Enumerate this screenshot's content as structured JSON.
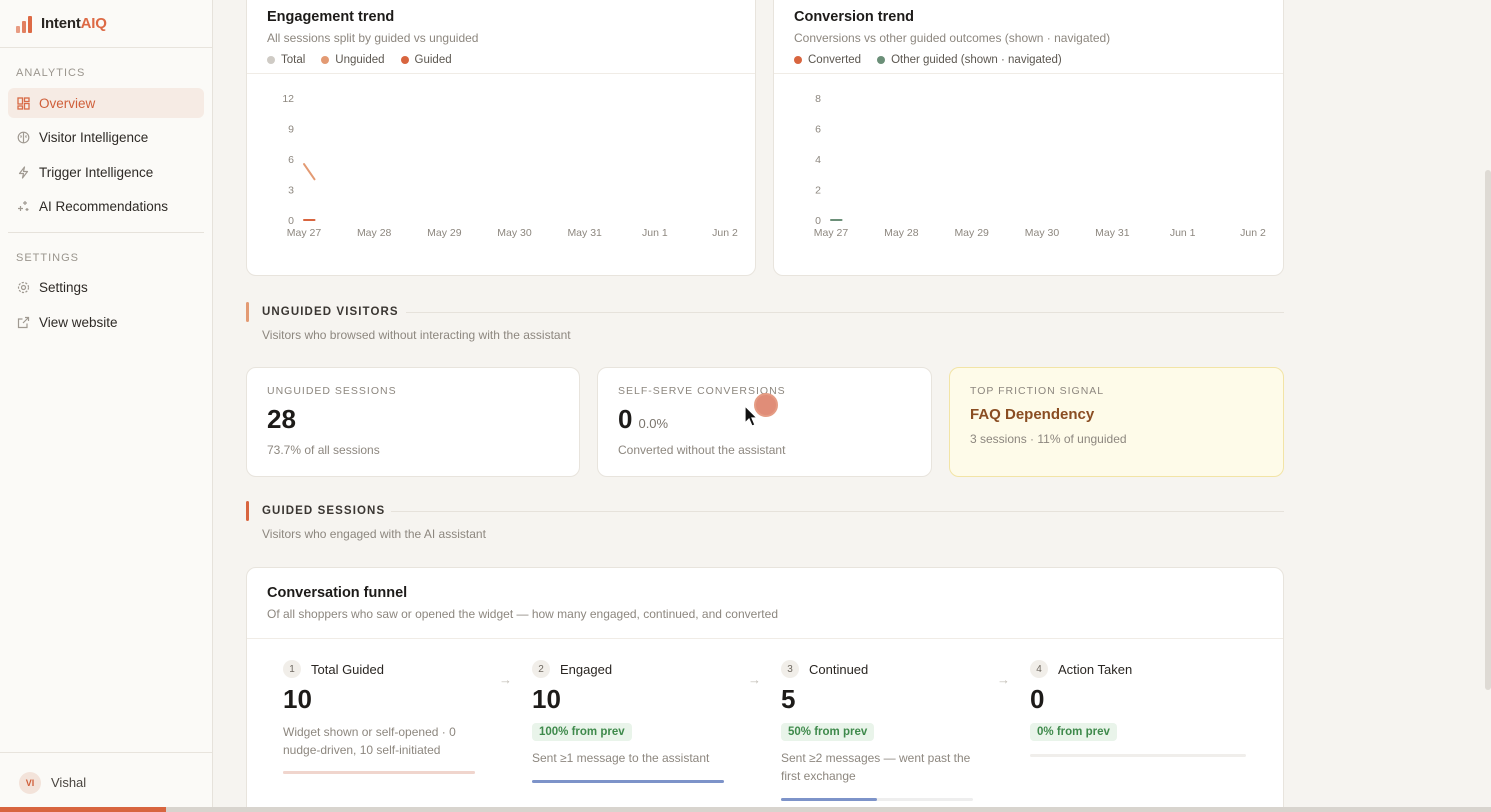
{
  "brand": {
    "name_prefix": "Intent",
    "name_accent": "AIQ"
  },
  "sidebar": {
    "analytics_heading": "ANALYTICS",
    "analytics_items": [
      {
        "label": "Overview",
        "icon": "grid-icon",
        "active": true
      },
      {
        "label": "Visitor Intelligence",
        "icon": "brain-icon",
        "active": false
      },
      {
        "label": "Trigger Intelligence",
        "icon": "bolt-icon",
        "active": false
      },
      {
        "label": "AI Recommendations",
        "icon": "sparkle-icon",
        "active": false
      }
    ],
    "settings_heading": "SETTINGS",
    "settings_items": [
      {
        "label": "Settings",
        "icon": "gear-icon"
      },
      {
        "label": "View website",
        "icon": "external-link-icon"
      }
    ],
    "user": {
      "initials": "VI",
      "name": "Vishal"
    }
  },
  "engagement": {
    "title": "Engagement trend",
    "subtitle": "All sessions split by guided vs unguided",
    "legend": [
      {
        "label": "Total",
        "color": "#cfcbc5"
      },
      {
        "label": "Unguided",
        "color": "#e39a73"
      },
      {
        "label": "Guided",
        "color": "#d8653f"
      }
    ],
    "chart_data": {
      "type": "line",
      "x": [
        "May 27",
        "May 28",
        "May 29",
        "May 30",
        "May 31",
        "Jun 1",
        "Jun 2"
      ],
      "y_ticks": [
        0,
        3,
        6,
        9,
        12
      ],
      "ylim": [
        0,
        12
      ],
      "series": [
        {
          "name": "Unguided",
          "color": "#e39a73",
          "points": [
            [
              0,
              5.5
            ],
            [
              0.15,
              4
            ]
          ]
        },
        {
          "name": "Guided",
          "color": "#d8653f",
          "points": [
            [
              0,
              0
            ],
            [
              0.15,
              0
            ]
          ]
        }
      ]
    }
  },
  "conversion": {
    "title": "Conversion trend",
    "subtitle": "Conversions vs other guided outcomes (shown · navigated)",
    "legend": [
      {
        "label": "Converted",
        "color": "#d8653f"
      },
      {
        "label": "Other guided (shown · navigated)",
        "color": "#6b8f78"
      }
    ],
    "chart_data": {
      "type": "line",
      "x": [
        "May 27",
        "May 28",
        "May 29",
        "May 30",
        "May 31",
        "Jun 1",
        "Jun 2"
      ],
      "y_ticks": [
        0,
        2,
        4,
        6,
        8
      ],
      "ylim": [
        0,
        8
      ],
      "series": [
        {
          "name": "Other guided (shown · navigated)",
          "color": "#6b8f78",
          "points": [
            [
              0,
              0
            ],
            [
              0.15,
              0
            ]
          ]
        }
      ]
    }
  },
  "unguided_section": {
    "title": "UNGUIDED VISITORS",
    "subtitle": "Visitors who browsed without interacting with the assistant",
    "accent": "#e39a73"
  },
  "unguided_cards": {
    "sessions": {
      "label": "UNGUIDED SESSIONS",
      "value": "28",
      "note": "73.7% of all sessions"
    },
    "conversions": {
      "label": "SELF-SERVE CONVERSIONS",
      "value": "0",
      "pct": "0.0%",
      "note": "Converted without the assistant"
    },
    "friction": {
      "label": "TOP FRICTION SIGNAL",
      "value": "FAQ Dependency",
      "note": "3 sessions · 11% of unguided"
    }
  },
  "guided_section": {
    "title": "GUIDED SESSIONS",
    "subtitle": "Visitors who engaged with the AI assistant",
    "accent": "#d8653f"
  },
  "funnel": {
    "title": "Conversation funnel",
    "subtitle": "Of all shoppers who saw or opened the widget — how many engaged, continued, and converted",
    "steps": [
      {
        "num": "1",
        "label": "Total Guided",
        "value": "10",
        "badge": "",
        "note": "Widget shown or self-opened · 0 nudge-driven, 10 self-initiated",
        "fill": 1.0,
        "color": "#f0d5cd"
      },
      {
        "num": "2",
        "label": "Engaged",
        "value": "10",
        "badge": "100% from prev",
        "note": "Sent ≥1 message to the assistant",
        "fill": 1.0,
        "color": "#7d93c9"
      },
      {
        "num": "3",
        "label": "Continued",
        "value": "5",
        "badge": "50% from prev",
        "note": "Sent ≥2 messages — went past the first exchange",
        "fill": 0.5,
        "color": "#7d93c9"
      },
      {
        "num": "4",
        "label": "Action Taken",
        "value": "0",
        "badge": "0% from prev",
        "note": "",
        "fill": 0.0,
        "color": "#7d93c9"
      }
    ]
  }
}
